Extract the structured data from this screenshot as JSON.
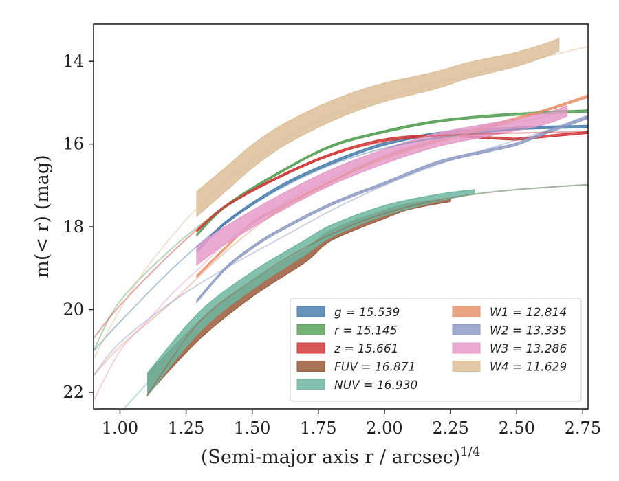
{
  "chart_data": {
    "type": "line",
    "xlabel": "(Semi-major axis r / arcsec)",
    "xlabel_sup": "1/4",
    "ylabel": "m(< r) (mag)",
    "xlim": [
      0.9,
      2.77
    ],
    "ylim": [
      22.4,
      13.1
    ],
    "y_inverted": true,
    "grid": false,
    "legend_position": "lower-right",
    "x_ticks": [
      1.0,
      1.25,
      1.5,
      1.75,
      2.0,
      2.25,
      2.5,
      2.75
    ],
    "x_tick_labels": [
      "1.00",
      "1.25",
      "1.50",
      "1.75",
      "2.00",
      "2.25",
      "2.50",
      "2.75"
    ],
    "y_ticks": [
      14,
      16,
      18,
      20,
      22
    ],
    "y_tick_labels": [
      "14",
      "16",
      "18",
      "20",
      "22"
    ],
    "series": [
      {
        "name": "g = 15.539",
        "label": "g",
        "value": "15.539",
        "color": "#4c7fae",
        "model": {
          "x": [
            0.9,
            1.0,
            1.2,
            1.4,
            1.6,
            1.8,
            2.0,
            2.2,
            2.4,
            2.6,
            2.77
          ],
          "y": [
            21.0,
            20.3,
            19.0,
            17.9,
            17.1,
            16.5,
            16.1,
            15.85,
            15.7,
            15.6,
            15.55
          ]
        },
        "band": {
          "x": [
            1.29,
            1.4,
            1.6,
            1.8,
            2.0,
            2.2,
            2.4,
            2.6,
            2.77
          ],
          "y": [
            18.6,
            17.9,
            17.05,
            16.45,
            16.0,
            15.75,
            15.65,
            15.6,
            15.58
          ],
          "w": 0.06
        }
      },
      {
        "name": "r = 15.145",
        "label": "r",
        "value": "15.145",
        "color": "#5aa25a",
        "model": {
          "x": [
            0.9,
            1.0,
            1.2,
            1.4,
            1.6,
            1.8,
            2.0,
            2.2,
            2.4,
            2.6,
            2.77
          ],
          "y": [
            21.0,
            19.8,
            18.5,
            17.5,
            16.7,
            16.05,
            15.7,
            15.45,
            15.3,
            15.22,
            15.18
          ]
        },
        "band": {
          "x": [
            1.29,
            1.4,
            1.6,
            1.8,
            2.0,
            2.2,
            2.4,
            2.6,
            2.77
          ],
          "y": [
            18.2,
            17.5,
            16.7,
            16.05,
            15.7,
            15.45,
            15.32,
            15.25,
            15.2
          ],
          "w": 0.05
        }
      },
      {
        "name": "z = 15.661",
        "label": "z",
        "value": "15.661",
        "color": "#d03a3a",
        "model": {
          "x": [
            0.9,
            1.0,
            1.2,
            1.4,
            1.6,
            1.8,
            2.0,
            2.2,
            2.4,
            2.6,
            2.77
          ],
          "y": [
            20.7,
            19.9,
            18.6,
            17.5,
            16.8,
            16.25,
            15.95,
            15.8,
            15.75,
            15.72,
            15.7
          ]
        },
        "band": {
          "x": [
            1.29,
            1.4,
            1.6,
            1.8,
            2.0,
            2.2,
            2.4,
            2.5,
            2.6,
            2.77
          ],
          "y": [
            18.1,
            17.5,
            16.8,
            16.25,
            15.9,
            15.8,
            15.85,
            15.88,
            15.82,
            15.72
          ],
          "w": 0.05
        }
      },
      {
        "name": "FUV = 16.871",
        "label": "FUV",
        "value": "16.871",
        "color": "#9a5a3a",
        "model": {
          "x": [
            1.1,
            1.3,
            1.5,
            1.7,
            1.9,
            2.1,
            2.3,
            2.5,
            2.77
          ],
          "y": [
            22.1,
            20.3,
            19.3,
            18.5,
            17.9,
            17.5,
            17.25,
            17.1,
            16.98
          ]
        },
        "band": {
          "x": [
            1.105,
            1.3,
            1.5,
            1.7,
            1.8,
            2.0,
            2.1,
            2.25
          ],
          "y": [
            21.8,
            20.5,
            19.5,
            18.7,
            18.2,
            17.7,
            17.5,
            17.35
          ],
          "w": 0.5,
          "w_end": 0.08
        }
      },
      {
        "name": "NUV = 16.930",
        "label": "NUV",
        "value": "16.930",
        "color": "#6db5a0",
        "model": {
          "x": [
            1.0,
            1.1,
            1.3,
            1.5,
            1.7,
            1.9,
            2.1,
            2.3,
            2.5,
            2.77
          ],
          "y": [
            22.5,
            21.8,
            20.4,
            19.3,
            18.55,
            17.95,
            17.55,
            17.25,
            17.1,
            16.98
          ]
        },
        "band": {
          "x": [
            1.105,
            1.3,
            1.5,
            1.7,
            1.8,
            2.0,
            2.2,
            2.34
          ],
          "y": [
            21.8,
            20.3,
            19.3,
            18.5,
            18.1,
            17.6,
            17.3,
            17.15
          ],
          "w": 0.55,
          "w_end": 0.1
        }
      },
      {
        "name": "W1 = 12.814",
        "label": "W1",
        "value": "12.814",
        "color": "#e8956f",
        "model": {
          "x": [
            0.9,
            1.0,
            1.2,
            1.4,
            1.6,
            1.8,
            2.0,
            2.2,
            2.4,
            2.6,
            2.77
          ],
          "y": [
            21.6,
            20.9,
            19.8,
            18.6,
            17.6,
            16.9,
            16.35,
            15.95,
            15.6,
            15.2,
            14.8
          ]
        },
        "band": {
          "x": [
            1.29,
            1.4,
            1.5,
            1.6,
            1.8,
            2.0,
            2.2,
            2.4,
            2.6,
            2.77
          ],
          "y": [
            19.2,
            18.5,
            17.9,
            17.55,
            16.9,
            16.3,
            15.9,
            15.55,
            15.2,
            14.85
          ],
          "w": 0.05
        }
      },
      {
        "name": "W2 = 13.335",
        "label": "W2",
        "value": "13.335",
        "color": "#8f9cc4",
        "model": {
          "x": [
            0.9,
            1.0,
            1.2,
            1.4,
            1.6,
            1.8,
            2.0,
            2.2,
            2.4,
            2.6,
            2.77
          ],
          "y": [
            21.6,
            20.8,
            19.8,
            19.0,
            18.3,
            17.6,
            17.0,
            16.5,
            16.1,
            15.7,
            15.3
          ]
        },
        "band": {
          "x": [
            1.29,
            1.4,
            1.5,
            1.6,
            1.8,
            2.0,
            2.2,
            2.4,
            2.5,
            2.6,
            2.77
          ],
          "y": [
            19.8,
            19.0,
            18.5,
            18.1,
            17.45,
            16.95,
            16.45,
            16.15,
            16.0,
            15.75,
            15.35
          ],
          "w": 0.06
        }
      },
      {
        "name": "W3 = 13.286",
        "label": "W3",
        "value": "13.286",
        "color": "#e59ac8",
        "model": {
          "x": [
            0.9,
            1.0,
            1.1,
            1.2,
            1.3,
            1.4,
            1.6,
            1.8,
            2.0,
            2.2,
            2.4,
            2.6,
            2.7
          ],
          "y": [
            22.2,
            21.0,
            20.3,
            19.6,
            19.0,
            18.4,
            17.5,
            16.8,
            16.3,
            15.95,
            15.6,
            15.35,
            15.15
          ]
        },
        "band": {
          "x": [
            1.29,
            1.4,
            1.6,
            1.8,
            2.0,
            2.2,
            2.4,
            2.6,
            2.69
          ],
          "y": [
            18.7,
            18.2,
            17.45,
            16.8,
            16.3,
            15.9,
            15.65,
            15.4,
            15.2
          ],
          "w": 0.45,
          "w_end": 0.25
        }
      },
      {
        "name": "W4 = 11.629",
        "label": "W4",
        "value": "11.629",
        "color": "#dcbf99",
        "model": {
          "x": [
            0.9,
            1.0,
            1.1,
            1.2,
            1.3,
            1.5,
            1.7,
            1.9,
            2.1,
            2.3,
            2.5,
            2.7,
            2.77
          ],
          "y": [
            21.2,
            20.0,
            19.0,
            18.2,
            17.5,
            16.4,
            15.6,
            15.05,
            14.7,
            14.35,
            14.05,
            13.75,
            13.65
          ]
        },
        "band": {
          "x": [
            1.29,
            1.4,
            1.5,
            1.6,
            1.7,
            1.8,
            1.9,
            2.0,
            2.1,
            2.2,
            2.3,
            2.4,
            2.5,
            2.6,
            2.66
          ],
          "y": [
            17.45,
            16.85,
            16.3,
            15.85,
            15.5,
            15.2,
            14.95,
            14.75,
            14.6,
            14.45,
            14.25,
            14.1,
            13.95,
            13.75,
            13.6
          ],
          "w": 0.6,
          "w_end": 0.3
        }
      }
    ]
  }
}
